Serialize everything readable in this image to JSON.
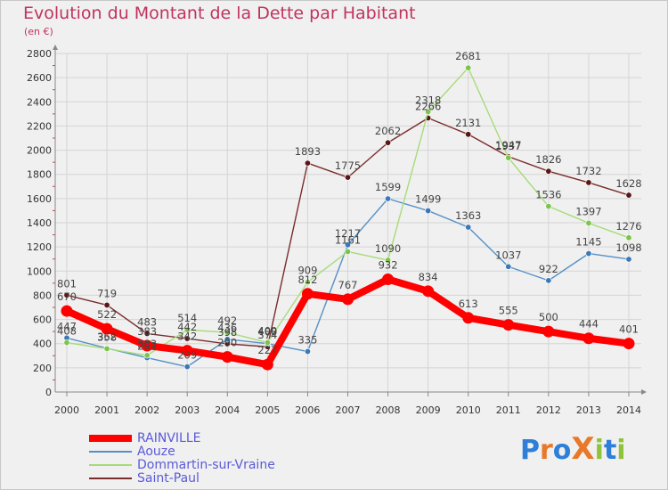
{
  "header": {
    "title": "Evolution du Montant de la Dette par Habitant",
    "unit": "(en €)"
  },
  "logo": {
    "text": "ProXiti",
    "letters": [
      "P",
      "r",
      "o",
      "X",
      "i",
      "t",
      "i"
    ],
    "colors": [
      "#2d7fd9",
      "#e8792a",
      "#2d7fd9",
      "#e8792a",
      "#8fc43a",
      "#2d7fd9",
      "#8fc43a"
    ]
  },
  "chart_data": {
    "type": "line",
    "title": "Evolution du Montant de la Dette par Habitant",
    "ylabel": "(en €)",
    "xlabel": "",
    "x": [
      "2000",
      "2001",
      "2002",
      "2003",
      "2004",
      "2005",
      "2006",
      "2007",
      "2008",
      "2009",
      "2010",
      "2011",
      "2012",
      "2013",
      "2014"
    ],
    "ylim": [
      0,
      2800
    ],
    "yticks": [
      0,
      200,
      400,
      600,
      800,
      1000,
      1200,
      1400,
      1600,
      1800,
      2000,
      2200,
      2400,
      2600,
      2800
    ],
    "grid": true,
    "legend_position": "bottom-left",
    "series": [
      {
        "name": "Saint-Paul",
        "color": "#7a2c2c",
        "marker": "#5a1616",
        "values": [
          801,
          719,
          483,
          442,
          398,
          374,
          1893,
          1775,
          2062,
          2266,
          2131,
          1947,
          1826,
          1732,
          1628
        ],
        "labels": [
          "801",
          "719",
          "483",
          "442",
          "398",
          "374",
          "1893",
          "1775",
          "2062",
          "2266",
          "2131",
          "1947",
          "1826",
          "1732",
          "1628"
        ]
      },
      {
        "name": "Aouze",
        "color": "#5590c8",
        "marker": "#3a78b8",
        "values": [
          447,
          362,
          283,
          209,
          436,
          400,
          335,
          1217,
          1599,
          1499,
          1363,
          1037,
          922,
          1145,
          1098
        ],
        "labels": [
          "447",
          "362",
          "283",
          "209",
          "436",
          "400",
          "335",
          "1217",
          "1599",
          "1499",
          "1363",
          "1037",
          "922",
          "1145",
          "1098"
        ]
      },
      {
        "name": "Dommartin-sur-Vraine",
        "color": "#a6dc78",
        "marker": "#7cc44a",
        "values": [
          408,
          358,
          303,
          514,
          492,
          409,
          909,
          1161,
          1090,
          2318,
          2681,
          1937,
          1536,
          1397,
          1276
        ],
        "labels": [
          "408",
          "358",
          "303",
          "514",
          "492",
          "409",
          "909",
          "1161",
          "1090",
          "2318",
          "2681",
          "1937",
          "1536",
          "1397",
          "1276"
        ]
      },
      {
        "name": "RAINVILLE",
        "color": "#ff0000",
        "marker": "#ff0000",
        "values": [
          670,
          522,
          383,
          342,
          290,
          227,
          812,
          767,
          932,
          834,
          613,
          555,
          500,
          444,
          401
        ],
        "labels": [
          "670",
          "522",
          "383",
          "342",
          "290",
          "227",
          "812",
          "767",
          "932",
          "834",
          "613",
          "555",
          "500",
          "444",
          "401"
        ]
      }
    ],
    "legend_order": [
      "RAINVILLE",
      "Aouze",
      "Dommartin-sur-Vraine",
      "Saint-Paul"
    ]
  }
}
